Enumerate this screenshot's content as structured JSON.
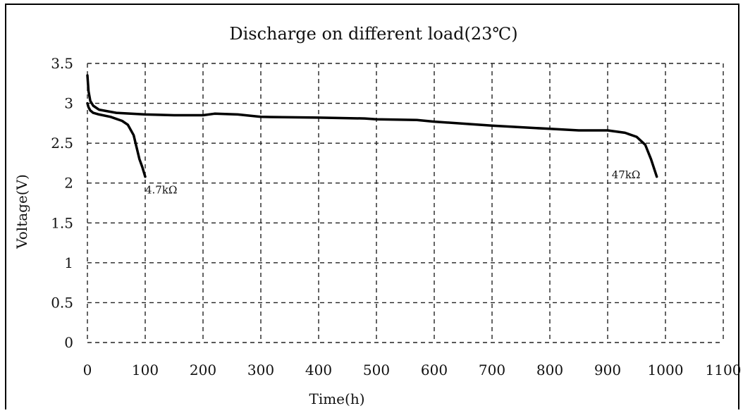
{
  "chart_data": {
    "type": "line",
    "title": "Discharge on different load(23℃)",
    "xlabel": "Time(h)",
    "ylabel": "Voltage(V)",
    "xlim": [
      0,
      1100
    ],
    "ylim": [
      0,
      3.5
    ],
    "x_ticks": [
      0,
      100,
      200,
      300,
      400,
      500,
      600,
      700,
      800,
      900,
      1000,
      1100
    ],
    "x_tick_labels": [
      "0",
      "100",
      "200",
      "300",
      "400",
      "500",
      "600",
      "700",
      "800",
      "900",
      "1000",
      "1100"
    ],
    "y_ticks": [
      0,
      0.5,
      1,
      1.5,
      2,
      2.5,
      3,
      3.5
    ],
    "y_tick_labels": [
      "0",
      "0.5",
      "1",
      "1.5",
      "2",
      "2.5",
      "3",
      "3.5"
    ],
    "grid": true,
    "series": [
      {
        "name": "4.7kΩ",
        "x": [
          0,
          2,
          5,
          10,
          20,
          40,
          60,
          70,
          80,
          85,
          90,
          95,
          100
        ],
        "y": [
          3.0,
          2.95,
          2.91,
          2.88,
          2.86,
          2.83,
          2.78,
          2.73,
          2.6,
          2.45,
          2.3,
          2.2,
          2.08
        ]
      },
      {
        "name": "47kΩ",
        "x": [
          0,
          2,
          5,
          10,
          20,
          50,
          100,
          150,
          200,
          220,
          260,
          300,
          400,
          480,
          500,
          570,
          600,
          700,
          800,
          850,
          900,
          930,
          950,
          965,
          975,
          985
        ],
        "y": [
          3.35,
          3.15,
          3.03,
          2.97,
          2.92,
          2.88,
          2.86,
          2.85,
          2.85,
          2.87,
          2.86,
          2.83,
          2.82,
          2.81,
          2.8,
          2.79,
          2.77,
          2.72,
          2.68,
          2.66,
          2.66,
          2.63,
          2.58,
          2.48,
          2.3,
          2.08
        ]
      }
    ],
    "annotations": [
      {
        "text": "4.7kΩ",
        "x": 100,
        "y": 1.87
      },
      {
        "text": "47kΩ",
        "x": 907,
        "y": 2.06
      }
    ]
  }
}
